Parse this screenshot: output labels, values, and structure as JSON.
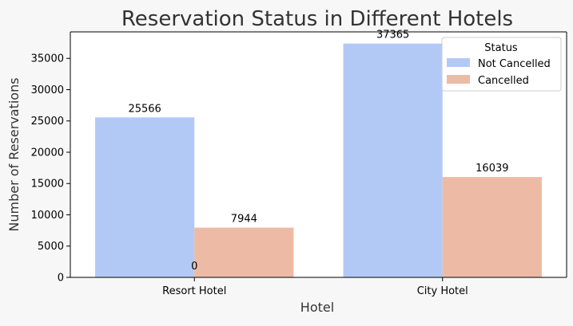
{
  "chart_data": {
    "type": "bar",
    "title": "Reservation Status in Different Hotels",
    "xlabel": "Hotel",
    "ylabel": "Number of Reservations",
    "categories": [
      "Resort Hotel",
      "City Hotel"
    ],
    "series": [
      {
        "name": "Not Cancelled",
        "values": [
          25566,
          37365
        ],
        "color": "#b3c9f5"
      },
      {
        "name": "Cancelled",
        "values": [
          7944,
          16039
        ],
        "color": "#edbba5"
      }
    ],
    "extra_annotations": [
      {
        "text": "0",
        "category": "Resort Hotel"
      }
    ],
    "ylim": [
      0,
      39234
    ],
    "yticks": [
      0,
      5000,
      10000,
      15000,
      20000,
      25000,
      30000,
      35000
    ],
    "grid": false,
    "legend": {
      "title": "Status",
      "position": "top-right"
    }
  }
}
